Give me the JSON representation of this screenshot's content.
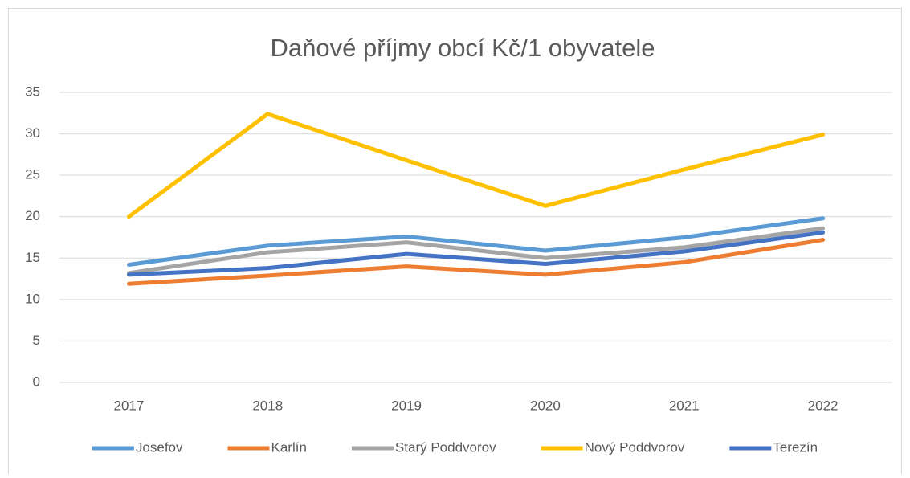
{
  "chart_data": {
    "type": "line",
    "title": "Daňové příjmy obcí Kč/1 obyvatele",
    "categories": [
      "2017",
      "2018",
      "2019",
      "2020",
      "2021",
      "2022"
    ],
    "series": [
      {
        "name": "Josefov",
        "color": "#5B9BD5",
        "values": [
          14.2,
          16.5,
          17.6,
          15.9,
          17.5,
          19.8
        ]
      },
      {
        "name": "Karlín",
        "color": "#ED7D31",
        "values": [
          11.9,
          12.9,
          14.0,
          13.0,
          14.5,
          17.2
        ]
      },
      {
        "name": "Starý Poddvorov",
        "color": "#A5A5A5",
        "values": [
          13.2,
          15.7,
          16.9,
          15.0,
          16.3,
          18.6
        ]
      },
      {
        "name": "Nový Poddvorov",
        "color": "#FFC000",
        "values": [
          20.0,
          32.4,
          26.8,
          21.3,
          25.7,
          29.9
        ]
      },
      {
        "name": "Terezín",
        "color": "#4472C4",
        "values": [
          13.0,
          13.8,
          15.5,
          14.3,
          15.8,
          18.1
        ]
      }
    ],
    "ylim": [
      0,
      35
    ],
    "yticks": [
      0,
      5,
      10,
      15,
      20,
      25,
      30,
      35
    ],
    "grid": true,
    "legend": "bottom"
  }
}
